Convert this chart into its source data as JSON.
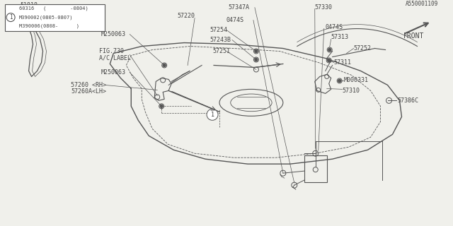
{
  "bg_color": "#f0f0eb",
  "line_color": "#555555",
  "text_color": "#444444",
  "diagram_id": "A550001109",
  "table_rows": [
    "60316   (        -0804)",
    "M390002(0805-0807)",
    "M390006(0808-      )"
  ]
}
